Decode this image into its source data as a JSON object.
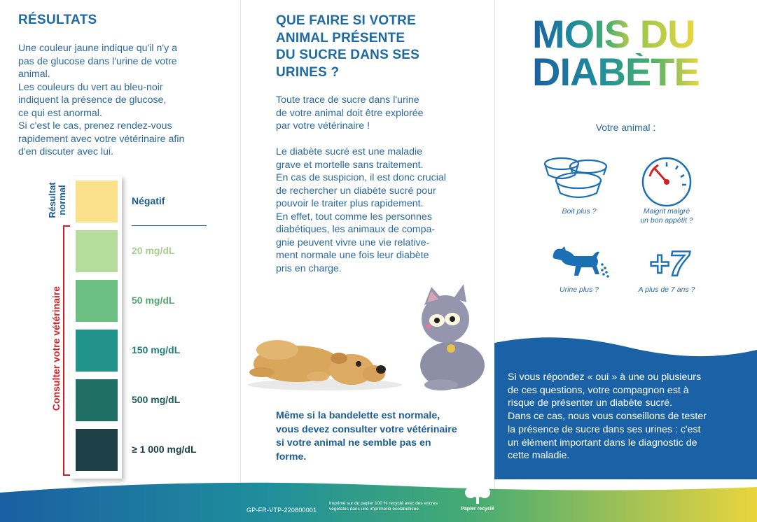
{
  "left": {
    "heading": "RÉSULTATS",
    "intro_lines": [
      "Une couleur jaune indique qu'il n'y a",
      "pas de glucose dans l'urine de votre",
      "animal.",
      "Les couleurs du vert au bleu-noir",
      "indiquent la présence de glucose,",
      "ce qui est anormal.",
      "Si c'est le cas, prenez rendez-vous",
      "rapidement avec votre vétérinaire afin",
      "d'en discuter avec lui."
    ],
    "normal_label_lines": [
      "Résultat",
      "normal"
    ],
    "consult_label": "Consulter votre vétérinaire",
    "scale": [
      {
        "label": "Négatif",
        "color": "#fbe08b",
        "label_color": "#1b5c93"
      },
      {
        "label": "20 mg/dL",
        "color": "#b6dc9b",
        "label_color": "#a9cf8e"
      },
      {
        "label": "50 mg/dL",
        "color": "#6cbf83",
        "label_color": "#4fa86e"
      },
      {
        "label": "150 mg/dL",
        "color": "#22938a",
        "label_color": "#1e7f78"
      },
      {
        "label": "500 mg/dL",
        "color": "#1f6f64",
        "label_color": "#1c5d55"
      },
      {
        "label": "≥ 1 000 mg/dL",
        "color": "#1e4148",
        "label_color": "#1c3f45"
      }
    ]
  },
  "middle": {
    "heading_lines": [
      "QUE FAIRE SI VOTRE",
      "ANIMAL PRÉSENTE",
      "DU SUCRE DANS SES",
      "URINES ?"
    ],
    "para1_lines": [
      "Toute trace de sucre dans l'urine",
      "de votre animal doit être explorée",
      "par votre vétérinaire !"
    ],
    "para2_lines": [
      "Le diabète sucré est une maladie",
      "grave et mortelle sans traitement.",
      "En cas de suspicion, il est donc crucial",
      "de rechercher un diabète sucré pour",
      "pouvoir le traiter plus rapidement.",
      "En effet, tout comme les personnes",
      "diabétiques, les animaux de compa-",
      "gnie peuvent vivre une vie relative-",
      "ment normale une fois leur diabète",
      "pris en charge."
    ],
    "bold_lines": [
      "Même si la bandelette est normale,",
      "vous devez consulter votre vétérinaire",
      "si votre animal ne semble pas en",
      "forme."
    ]
  },
  "right": {
    "title_line1_a": "MOIS ",
    "title_line1_b": "DU",
    "title_line2": "DIABÈTE",
    "subtitle": "Votre animal :",
    "icons": [
      {
        "name": "bowls-icon",
        "caption_lines": [
          "Boit plus ?"
        ]
      },
      {
        "name": "gauge-icon",
        "caption_lines": [
          "Maigrit malgré",
          "un bon appétit ?"
        ]
      },
      {
        "name": "dog-urinating-icon",
        "caption_lines": [
          "Urine plus ?"
        ]
      },
      {
        "name": "plus-seven-icon",
        "caption_lines": [
          "A plus de 7 ans ?"
        ]
      }
    ],
    "plus_seven_text": "+7",
    "blue_lines": [
      "Si vous répondez « oui » à une ou plusieurs",
      "de ces questions, votre compagnon est à",
      "risque de présenter un diabète sucré.",
      "Dans ce cas, nous vous conseillons de tester",
      "la présence de sucre dans ses urines : c'est",
      "un élément important dans le diagnostic de",
      "cette maladie."
    ]
  },
  "footer": {
    "reference": "GP-FR-VTP-220800001",
    "print_lines": [
      "Imprimé sur du papier 100 % recyclé avec des encres",
      "végétales dans une imprimerie écolabellisée."
    ],
    "recycle_label": "Papier recyclé"
  },
  "colors": {
    "brand_blue": "#1b5c93",
    "red": "#d32027",
    "wave_blue": "#1a62a5",
    "gradient": [
      "#1b5fa0",
      "#1f8d9e",
      "#48ad6c",
      "#e9d542"
    ]
  }
}
